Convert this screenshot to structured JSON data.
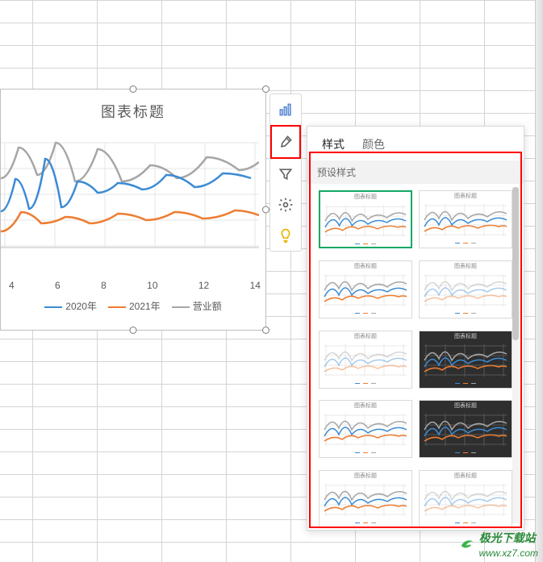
{
  "chart": {
    "title": "图表标题",
    "x_ticks": [
      "4",
      "6",
      "8",
      "10",
      "12",
      "14"
    ],
    "legend": [
      {
        "label": "2020年",
        "color": "#3b8bd4"
      },
      {
        "label": "2021年",
        "color": "#ed7d31"
      },
      {
        "label": "营业额",
        "color": "#a6a6a6"
      }
    ],
    "series": {
      "blue": {
        "color": "#3b8bd4",
        "points": [
          [
            0,
            85
          ],
          [
            18,
            45
          ],
          [
            35,
            82
          ],
          [
            55,
            20
          ],
          [
            75,
            80
          ],
          [
            95,
            48
          ],
          [
            120,
            62
          ],
          [
            145,
            50
          ],
          [
            175,
            58
          ],
          [
            205,
            40
          ],
          [
            240,
            55
          ],
          [
            275,
            38
          ],
          [
            310,
            44
          ]
        ]
      },
      "orange": {
        "color": "#ed7d31",
        "points": [
          [
            0,
            110
          ],
          [
            25,
            86
          ],
          [
            50,
            100
          ],
          [
            80,
            92
          ],
          [
            110,
            100
          ],
          [
            145,
            88
          ],
          [
            180,
            96
          ],
          [
            215,
            86
          ],
          [
            250,
            94
          ],
          [
            290,
            84
          ],
          [
            320,
            90
          ]
        ]
      },
      "grey": {
        "color": "#a6a6a6",
        "points": [
          [
            0,
            44
          ],
          [
            22,
            6
          ],
          [
            45,
            40
          ],
          [
            68,
            0
          ],
          [
            92,
            48
          ],
          [
            120,
            8
          ],
          [
            150,
            48
          ],
          [
            185,
            28
          ],
          [
            218,
            44
          ],
          [
            255,
            18
          ],
          [
            295,
            34
          ],
          [
            320,
            24
          ]
        ]
      }
    },
    "axis_color": "#bfbfbf",
    "grid_color": "#e6e6e6"
  },
  "toolbar": {
    "items": [
      {
        "name": "chart-type-icon"
      },
      {
        "name": "brush-icon",
        "active": true
      },
      {
        "name": "funnel-icon"
      },
      {
        "name": "gear-icon"
      },
      {
        "name": "bulb-icon"
      }
    ]
  },
  "panel": {
    "tabs": [
      {
        "label": "样式",
        "active": true,
        "name": "tab-style"
      },
      {
        "label": "颜色",
        "active": false,
        "name": "tab-color"
      }
    ],
    "section_label": "预设样式",
    "presets": [
      {
        "name": "preset-1",
        "selected": true,
        "bg": "#ffffff",
        "title": "图表标题"
      },
      {
        "name": "preset-2",
        "bg": "#ffffff",
        "title": "图表标题"
      },
      {
        "name": "preset-3",
        "bg": "#ffffff",
        "title": "图表标题"
      },
      {
        "name": "preset-4",
        "bg": "#ffffff",
        "title": "图表标题",
        "faded": true
      },
      {
        "name": "preset-5",
        "bg": "#ffffff",
        "title": "图表标题",
        "faded": true
      },
      {
        "name": "preset-6",
        "bg": "#2e2e2e",
        "title": "图表标题",
        "dark": true
      },
      {
        "name": "preset-7",
        "bg": "#ffffff",
        "title": "图表标题"
      },
      {
        "name": "preset-8",
        "bg": "#2e2e2e",
        "title": "图表标题",
        "dark": true
      },
      {
        "name": "preset-9",
        "bg": "#ffffff",
        "title": "图表标题"
      },
      {
        "name": "preset-10",
        "bg": "#ffffff",
        "title": "图表标题",
        "faded": true
      }
    ],
    "mini_colors": {
      "blue": "#3b8bd4",
      "orange": "#ed7d31",
      "grey": "#a6a6a6"
    }
  },
  "watermark": {
    "text1": "极光下载站",
    "text2": "www.xz7.com"
  }
}
